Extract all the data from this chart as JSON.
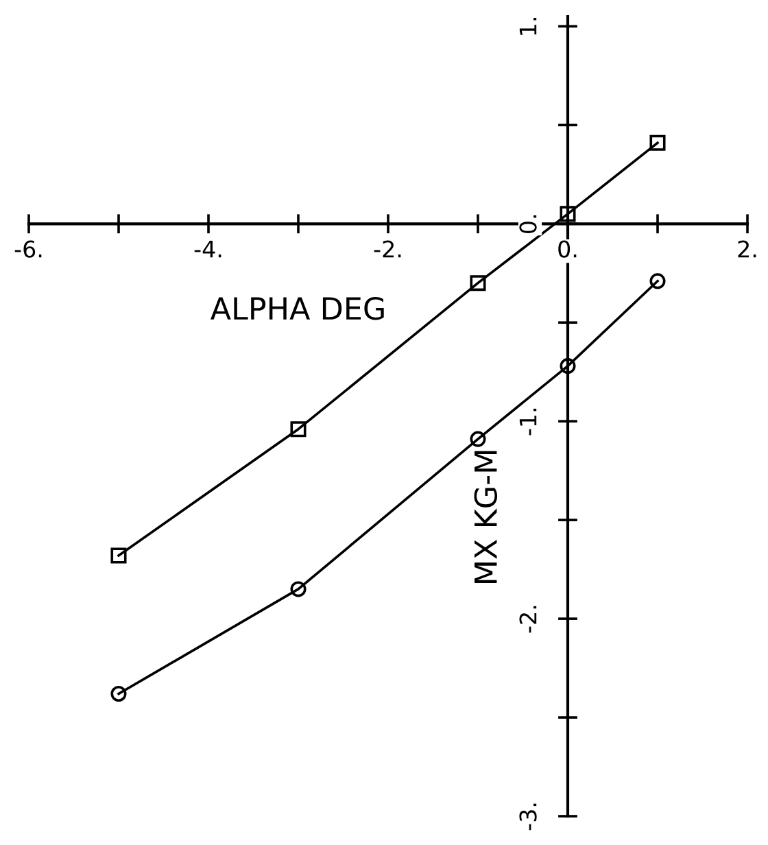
{
  "chart_data": {
    "type": "line",
    "xlabel": "ALPHA DEG",
    "ylabel": "MX KG-M",
    "x": [
      -5,
      -3,
      -1,
      0,
      1
    ],
    "series": [
      {
        "color": "#000000",
        "marker": "square",
        "values": [
          -1.68,
          -1.04,
          -0.3,
          0.05,
          0.41
        ]
      },
      {
        "color": "#000000",
        "marker": "circle",
        "values": [
          -2.38,
          -1.85,
          -1.09,
          -0.72,
          -0.29
        ]
      }
    ],
    "xlim": [
      -6,
      2
    ],
    "ylim": [
      -3,
      1.05
    ],
    "xticks": [
      {
        "value": -6,
        "label": "-6."
      },
      {
        "value": -5,
        "label": null
      },
      {
        "value": -4,
        "label": "-4."
      },
      {
        "value": -3,
        "label": null
      },
      {
        "value": -2,
        "label": "-2."
      },
      {
        "value": -1,
        "label": null
      },
      {
        "value": 0,
        "label": "0."
      },
      {
        "value": 1,
        "label": null
      },
      {
        "value": 2,
        "label": "2."
      }
    ],
    "yticks": [
      {
        "value": -3,
        "label": "-3."
      },
      {
        "value": -2.5,
        "label": null
      },
      {
        "value": -2,
        "label": "-2."
      },
      {
        "value": -1.5,
        "label": null
      },
      {
        "value": -1,
        "label": "-1."
      },
      {
        "value": -0.5,
        "label": null
      },
      {
        "value": 0,
        "label": "0."
      },
      {
        "value": 0.5,
        "label": null
      },
      {
        "value": 1,
        "label": "1."
      }
    ],
    "grid": false,
    "line_style": "solid"
  }
}
